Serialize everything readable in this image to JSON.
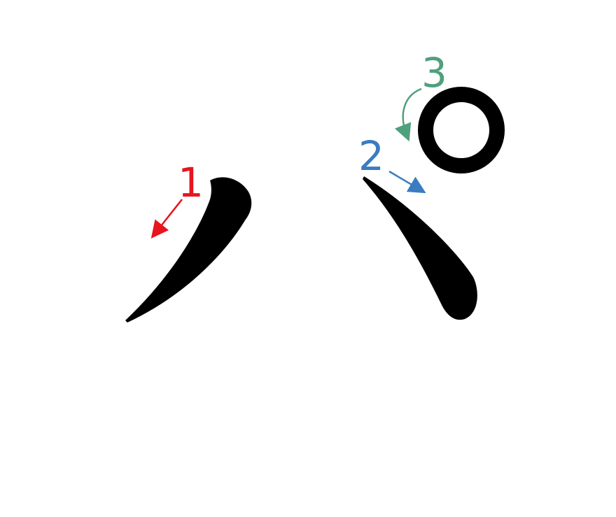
{
  "character": "パ",
  "strokes": [
    {
      "order": 1,
      "number_label": "1",
      "color": "#e8141e",
      "direction": "down-left"
    },
    {
      "order": 2,
      "number_label": "2",
      "color": "#3a7cc0",
      "direction": "down-right"
    },
    {
      "order": 3,
      "number_label": "3",
      "color": "#4fa07c",
      "direction": "clockwise"
    }
  ],
  "colors": {
    "ink": "#000000",
    "background": "#ffffff"
  }
}
